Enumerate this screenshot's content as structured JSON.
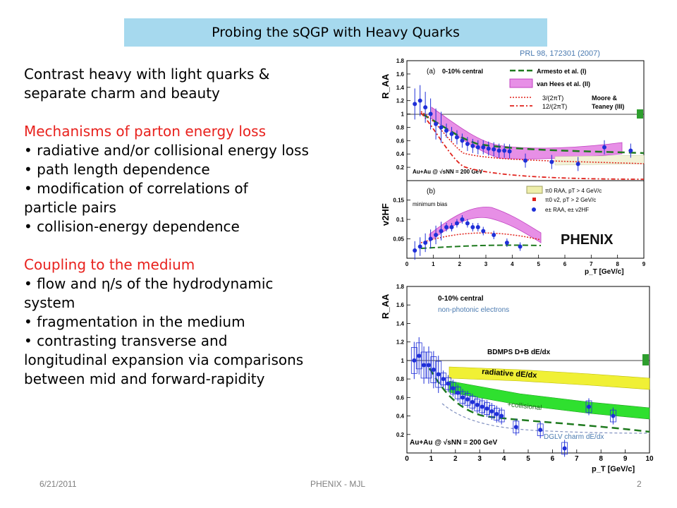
{
  "slide": {
    "title": "Probing the sQGP with Heavy Quarks",
    "citation": "PRL 98, 172301 (2007)"
  },
  "body": {
    "intro": [
      "Contrast heavy with light quarks &",
      "separate charm and beauty"
    ],
    "section1_heading": "Mechanisms of parton energy loss",
    "section1_lines": [
      "• radiative and/or collisional energy loss",
      "• path length dependence",
      "• modification of correlations of",
      "particle pairs",
      "• collision-energy dependence"
    ],
    "section2_heading": "Coupling to the medium",
    "section2_lines": [
      "• flow and η/s of the hydrodynamic",
      "system",
      "• fragmentation in the medium",
      "• contrasting transverse and",
      "longitudinal expansion via comparisons",
      "between mid and forward-rapidity"
    ]
  },
  "footer": {
    "date": "6/21/2011",
    "center": "PHENIX - MJL",
    "page": "2"
  },
  "colors": {
    "title_bar": "#a6d9ee",
    "heading_red": "#e8211d",
    "data_blue": "#1f2fd8",
    "band_magenta": "#e78fe6",
    "band_yellow": "#f0f035",
    "band_green": "#2fe02f",
    "curve_green": "#1e7a1e",
    "curve_red": "#e0201a"
  },
  "chart_data": [
    {
      "type": "scatter",
      "panel_label": "(a)",
      "panel_tag": "0-10% central",
      "ylabel": "R_AA",
      "xlabel": "p_T [GeV/c]",
      "xlim": [
        0,
        9
      ],
      "ylim": [
        0,
        1.8
      ],
      "yticks": [
        "0.2",
        "0.4",
        "0.6",
        "0.8",
        "1",
        "1.2",
        "1.4",
        "1.6",
        "1.8"
      ],
      "xticks": [
        "0",
        "1",
        "2",
        "3",
        "4",
        "5",
        "6",
        "7",
        "8",
        "9"
      ],
      "legend": [
        "Armesto et al. (I)",
        "van Hees et al. (II)",
        "3/(2πT)",
        "12/(2πT)",
        "Moore &",
        "Teaney (III)"
      ],
      "collision_label": "Au+Au @ √sNN = 200 GeV",
      "x": [
        0.3,
        0.5,
        0.7,
        0.9,
        1.1,
        1.3,
        1.5,
        1.7,
        1.9,
        2.1,
        2.3,
        2.5,
        2.7,
        2.9,
        3.1,
        3.3,
        3.5,
        3.7,
        3.9,
        4.5,
        5.5,
        6.5,
        7.5,
        8.5
      ],
      "y": [
        1.15,
        1.2,
        1.1,
        1.0,
        0.85,
        0.8,
        0.75,
        0.7,
        0.65,
        0.6,
        0.55,
        0.52,
        0.5,
        0.5,
        0.48,
        0.47,
        0.45,
        0.45,
        0.44,
        0.3,
        0.28,
        0.25,
        0.5,
        0.45
      ]
    },
    {
      "type": "scatter",
      "panel_label": "(b)",
      "panel_tag": "minimum bias",
      "ylabel": "v2HF",
      "xlabel": "p_T [GeV/c]",
      "xlim": [
        0,
        9
      ],
      "ylim": [
        0,
        0.2
      ],
      "yticks": [
        "0.05",
        "0.1",
        "0.15"
      ],
      "xticks": [
        "0",
        "1",
        "2",
        "3",
        "4",
        "5",
        "6",
        "7",
        "8",
        "9"
      ],
      "legend": [
        "π0 RAA, pT > 4 GeV/c",
        "π0 v2, pT > 2 GeV/c",
        "e± RAA, e± v2HF"
      ],
      "logo": "PHENIX",
      "x": [
        0.3,
        0.5,
        0.7,
        0.9,
        1.1,
        1.3,
        1.5,
        1.7,
        1.9,
        2.1,
        2.3,
        2.5,
        2.7,
        2.9,
        3.3,
        3.8,
        4.3
      ],
      "y": [
        0.02,
        0.03,
        0.04,
        0.05,
        0.06,
        0.07,
        0.08,
        0.08,
        0.09,
        0.1,
        0.09,
        0.08,
        0.08,
        0.07,
        0.06,
        0.04,
        0.03
      ]
    },
    {
      "type": "scatter",
      "panel_tag": "0-10% central",
      "ylabel": "R_AA",
      "xlabel": "p_T [GeV/c]",
      "xlim": [
        0,
        10
      ],
      "ylim": [
        0,
        1.8
      ],
      "yticks": [
        "0.2",
        "0.4",
        "0.6",
        "0.8",
        "1",
        "1.2",
        "1.4",
        "1.6",
        "1.8"
      ],
      "xticks": [
        "0",
        "1",
        "2",
        "3",
        "4",
        "5",
        "6",
        "7",
        "8",
        "9",
        "10"
      ],
      "collision_label": "Au+Au @ √sNN = 200 GeV",
      "annotations": [
        "non-photonic electrons",
        "BDMPS D+B dE/dx",
        "radiative dE/dx",
        "+collisional",
        "DGLV charm dE/dx"
      ],
      "x": [
        0.3,
        0.5,
        0.7,
        0.9,
        1.1,
        1.3,
        1.5,
        1.7,
        1.9,
        2.1,
        2.3,
        2.5,
        2.7,
        2.9,
        3.1,
        3.3,
        3.5,
        3.7,
        3.9,
        4.5,
        5.5,
        6.5,
        7.5,
        8.5
      ],
      "y": [
        1.0,
        1.05,
        0.95,
        0.95,
        0.9,
        0.85,
        0.8,
        0.75,
        0.7,
        0.65,
        0.6,
        0.58,
        0.55,
        0.52,
        0.5,
        0.48,
        0.45,
        0.42,
        0.4,
        0.28,
        0.25,
        0.05,
        0.5,
        0.4
      ]
    }
  ]
}
